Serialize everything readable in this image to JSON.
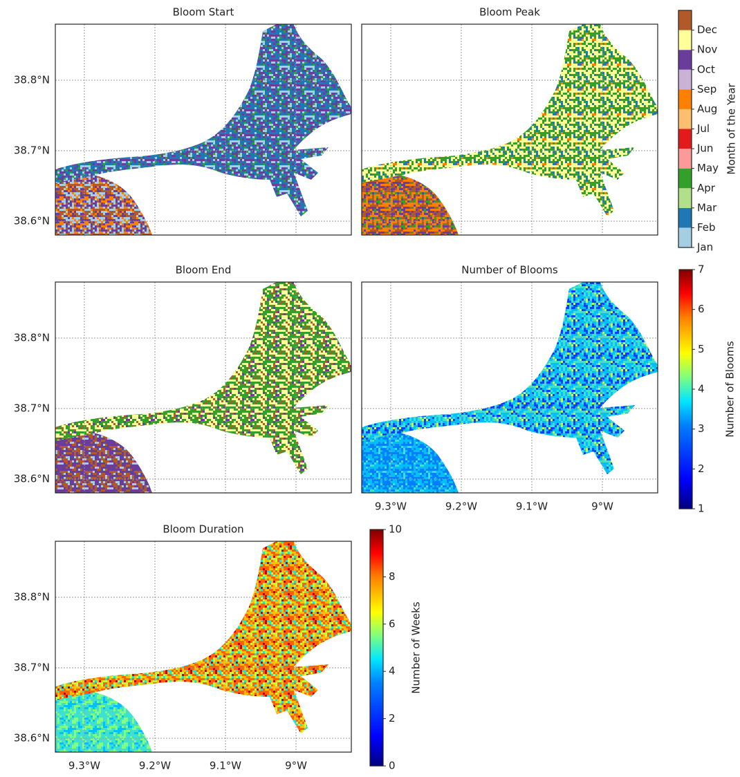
{
  "panels": [
    {
      "title": "Bloom Start"
    },
    {
      "title": "Bloom Peak"
    },
    {
      "title": "Bloom End"
    },
    {
      "title": "Number of Blooms"
    },
    {
      "title": "Bloom Duration"
    }
  ],
  "lat_ticks": [
    "38.8°N",
    "38.7°N",
    "38.6°N"
  ],
  "lon_ticks": [
    "9.3°W",
    "9.2°W",
    "9.1°W",
    "9°W"
  ],
  "month_colorbar": {
    "label": "Month of the Year",
    "ticks": [
      "Jan",
      "Feb",
      "Mar",
      "Apr",
      "May",
      "Jun",
      "Jul",
      "Aug",
      "Sep",
      "Oct",
      "Nov",
      "Dec"
    ],
    "colors": [
      "#a6cee3",
      "#1f78b4",
      "#b2df8a",
      "#33a02c",
      "#fb9a99",
      "#e31a1c",
      "#fdbf6f",
      "#ff7f00",
      "#cab2d6",
      "#6a3d9a",
      "#ffff99",
      "#b15928"
    ]
  },
  "blooms_colorbar": {
    "label": "Number of Blooms",
    "range": [
      1,
      7
    ],
    "ticks": [
      1,
      2,
      3,
      4,
      5,
      6,
      7
    ]
  },
  "weeks_colorbar": {
    "label": "Number of Weeks",
    "range": [
      0,
      10
    ],
    "ticks": [
      0,
      2,
      4,
      6,
      8,
      10
    ]
  }
}
